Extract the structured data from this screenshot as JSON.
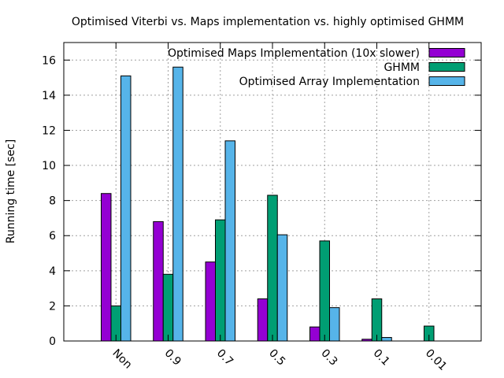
{
  "chart_data": {
    "type": "bar",
    "title": "Optimised Viterbi vs. Maps implementation vs. highly optimised GHMM",
    "xlabel": "",
    "ylabel": "Running time [sec]",
    "categories": [
      "Non",
      "0.9",
      "0.7",
      "0.5",
      "0.3",
      "0.1",
      "0.01"
    ],
    "ylim": [
      0,
      17
    ],
    "yticks": [
      "0",
      "2",
      "4",
      "6",
      "8",
      "10",
      "12",
      "14",
      "16"
    ],
    "grid": true,
    "legend_position": "top-right",
    "series": [
      {
        "name": "Optimised Maps Implementation (10x slower)",
        "color": "#9400d3",
        "values": [
          8.4,
          6.8,
          4.5,
          2.4,
          0.8,
          0.1,
          0
        ]
      },
      {
        "name": "GHMM",
        "color": "#009e73",
        "values": [
          2.0,
          3.8,
          6.9,
          8.3,
          5.7,
          2.4,
          0.85
        ]
      },
      {
        "name": "Optimised Array Implementation",
        "color": "#56b4e9",
        "values": [
          15.1,
          15.6,
          11.4,
          6.05,
          1.9,
          0.2,
          0
        ]
      }
    ]
  }
}
